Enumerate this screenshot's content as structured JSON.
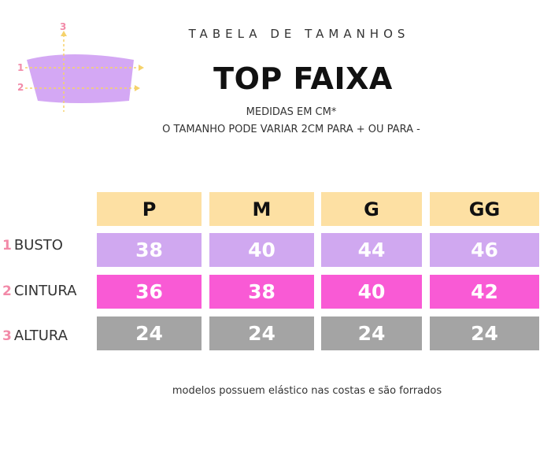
{
  "header": {
    "supertitle": "TABELA DE TAMANHOS",
    "title": "TOP FAIXA",
    "note_line1": "MEDIDAS EM CM*",
    "note_line2": "O TAMANHO PODE VARIAR 2CM PARA + OU PARA -"
  },
  "diagram": {
    "markers": [
      "1",
      "2",
      "3"
    ],
    "colors": {
      "body": "#d4a8f4",
      "marker": "#f28aa8",
      "guide": "#f5d26b"
    }
  },
  "table": {
    "columns": [
      "P",
      "M",
      "G",
      "GG"
    ],
    "rows": [
      {
        "num": "1",
        "label": "BUSTO",
        "values": [
          "38",
          "40",
          "44",
          "46"
        ],
        "color": "#d0a8f0"
      },
      {
        "num": "2",
        "label": "CINTURA",
        "values": [
          "36",
          "38",
          "40",
          "42"
        ],
        "color": "#f95ad5"
      },
      {
        "num": "3",
        "label": "ALTURA",
        "values": [
          "24",
          "24",
          "24",
          "24"
        ],
        "color": "#a4a4a4"
      }
    ],
    "header_color": "#fde0a3"
  },
  "footer": {
    "note": "modelos possuem elástico nas costas e são forrados"
  }
}
